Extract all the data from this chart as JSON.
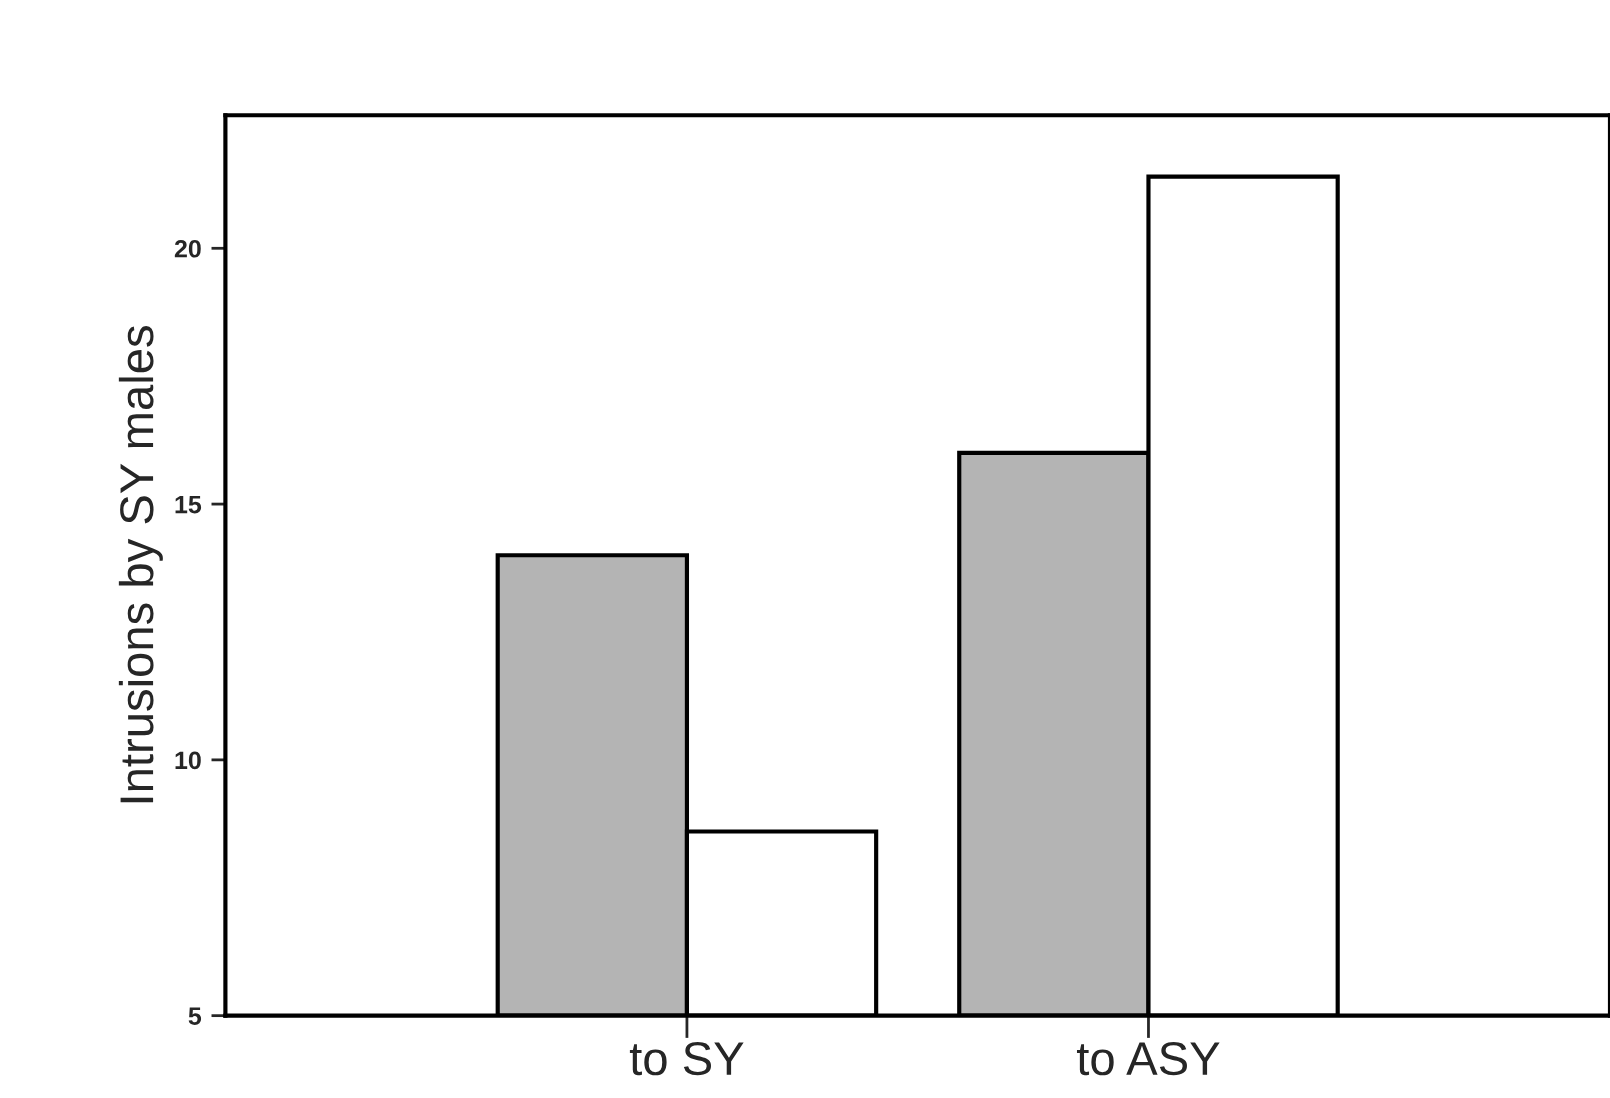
{
  "chart_data": {
    "type": "bar",
    "ylabel": "Intrusions by SY males",
    "categories": [
      "to SY",
      "to ASY"
    ],
    "series": [
      {
        "color": "#b4b4b4",
        "values": [
          14.0,
          16.0
        ]
      },
      {
        "color": "#ffffff",
        "values": [
          8.6,
          21.4
        ]
      }
    ],
    "ylim": [
      5,
      22.6
    ],
    "yticks": [
      5,
      10,
      15,
      20
    ],
    "grid": false
  }
}
